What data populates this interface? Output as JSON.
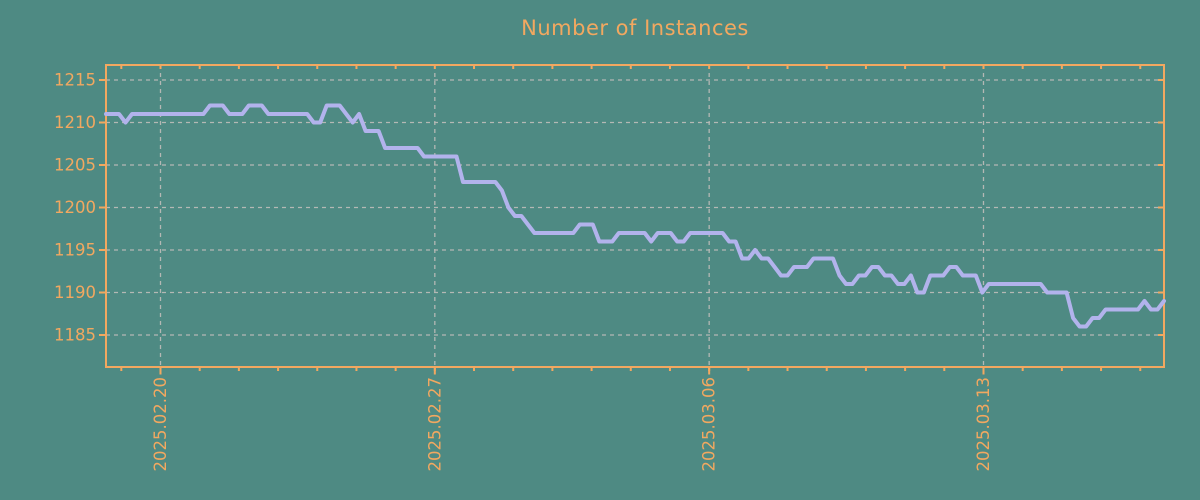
{
  "chart_data": {
    "type": "line",
    "title": "Number of Instances",
    "xlabel": "",
    "ylabel": "",
    "x_tick_labels": [
      "2025.02.20",
      "2025.02.27",
      "2025.03.06",
      "2025.03.13"
    ],
    "y_ticks": [
      1185,
      1190,
      1195,
      1200,
      1205,
      1210,
      1215
    ],
    "ylim": [
      1181,
      1217
    ],
    "x_major_tick_interval": "7 days",
    "x_minor_tick_interval": "1 day",
    "samples_per_day": 6,
    "grid": "dashed",
    "legend_position": "none",
    "series": [
      {
        "name": "instances",
        "values": [
          1211,
          1211,
          1211,
          1210,
          1211,
          1211,
          1211,
          1211,
          1211,
          1211,
          1211,
          1211,
          1211,
          1211,
          1211,
          1211,
          1212,
          1212,
          1212,
          1211,
          1211,
          1211,
          1212,
          1212,
          1212,
          1211,
          1211,
          1211,
          1211,
          1211,
          1211,
          1211,
          1210,
          1210,
          1212,
          1212,
          1212,
          1211,
          1210,
          1211,
          1209,
          1209,
          1209,
          1207,
          1207,
          1207,
          1207,
          1207,
          1207,
          1206,
          1206,
          1206,
          1206,
          1206,
          1206,
          1203,
          1203,
          1203,
          1203,
          1203,
          1203,
          1202,
          1200,
          1199,
          1199,
          1198,
          1197,
          1197,
          1197,
          1197,
          1197,
          1197,
          1197,
          1198,
          1198,
          1198,
          1196,
          1196,
          1196,
          1197,
          1197,
          1197,
          1197,
          1197,
          1196,
          1197,
          1197,
          1197,
          1196,
          1196,
          1197,
          1197,
          1197,
          1197,
          1197,
          1197,
          1196,
          1196,
          1194,
          1194,
          1195,
          1194,
          1194,
          1193,
          1192,
          1192,
          1193,
          1193,
          1193,
          1194,
          1194,
          1194,
          1194,
          1192,
          1191,
          1191,
          1192,
          1192,
          1193,
          1193,
          1192,
          1192,
          1191,
          1191,
          1192,
          1190,
          1190,
          1192,
          1192,
          1192,
          1193,
          1193,
          1192,
          1192,
          1192,
          1190,
          1191,
          1191,
          1191,
          1191,
          1191,
          1191,
          1191,
          1191,
          1191,
          1190,
          1190,
          1190,
          1190,
          1187,
          1186,
          1186,
          1187,
          1187,
          1188,
          1188,
          1188,
          1188,
          1188,
          1188,
          1189,
          1188,
          1188,
          1189
        ]
      }
    ]
  },
  "colors": {
    "background": "#4e8a83",
    "axis": "#f2a860",
    "tick_label": "#f2a860",
    "title": "#f2a860",
    "line": "#b2b3ec",
    "grid": "#b4b8b4"
  }
}
